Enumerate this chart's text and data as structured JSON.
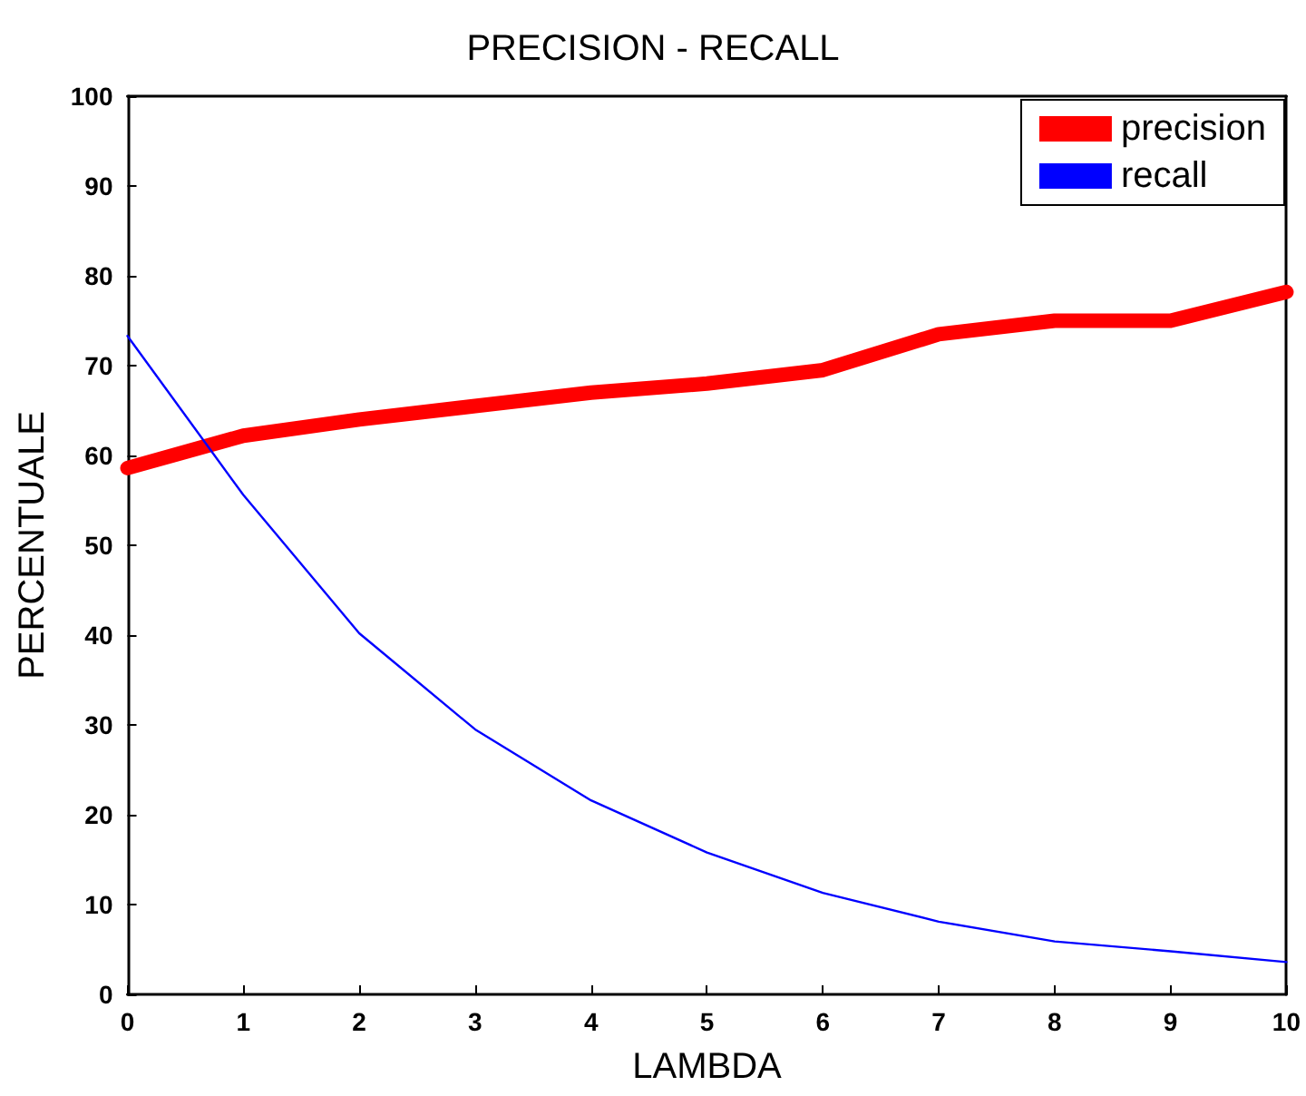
{
  "chart_data": {
    "type": "line",
    "title": "PRECISION - RECALL",
    "xlabel": "LAMBDA",
    "ylabel": "PERCENTUALE",
    "x": [
      0,
      1,
      2,
      3,
      4,
      5,
      6,
      7,
      8,
      9,
      10
    ],
    "series": [
      {
        "name": "precision",
        "color": "#ff0000",
        "values": [
          58.6,
          62.2,
          64,
          65.5,
          67,
          68,
          69.5,
          73.5,
          75,
          75,
          78.2
        ]
      },
      {
        "name": "recall",
        "color": "#0000ff",
        "values": [
          73.3,
          55.6,
          40.2,
          29.5,
          21.6,
          15.8,
          11.3,
          8.1,
          5.9,
          4.8,
          3.6
        ]
      }
    ],
    "xlim": [
      0,
      10
    ],
    "xticks": [
      0,
      1,
      2,
      3,
      4,
      5,
      6,
      7,
      8,
      9,
      10
    ],
    "ylim": [
      0,
      100
    ],
    "yticks": [
      0,
      10,
      20,
      30,
      40,
      50,
      60,
      70,
      80,
      90,
      100
    ],
    "grid": false,
    "legend": "top right",
    "marker": "none",
    "line_style": "solid"
  }
}
